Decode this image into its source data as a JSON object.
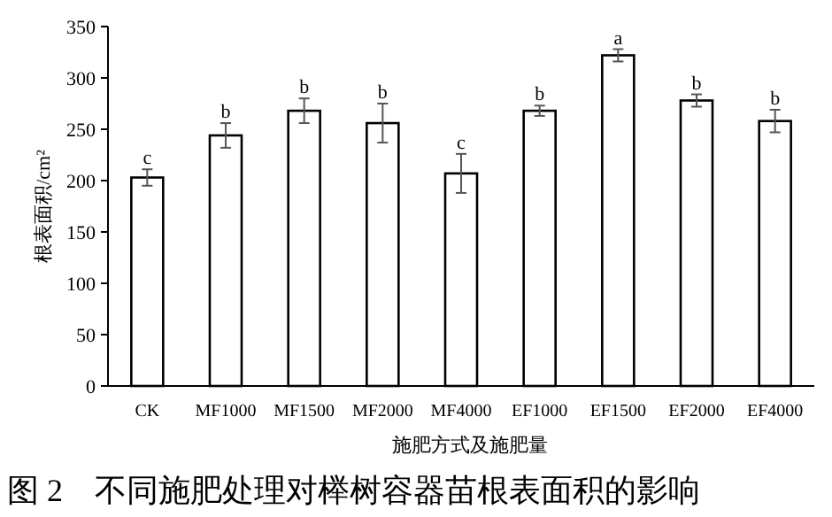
{
  "chart_data": {
    "type": "bar",
    "title": "图 2　不同施肥处理对榉树容器苗根表面积的影响",
    "xlabel": "施肥方式及施肥量",
    "ylabel": "根表面积/cm²",
    "categories": [
      "CK",
      "MF1000",
      "MF1500",
      "MF2000",
      "MF4000",
      "EF1000",
      "EF1500",
      "EF2000",
      "EF4000"
    ],
    "values": [
      203,
      244,
      268,
      256,
      207,
      268,
      322,
      278,
      258
    ],
    "errors": [
      8,
      12,
      12,
      19,
      19,
      5,
      6,
      6,
      11
    ],
    "color": "#ffffff",
    "ylim": [
      0,
      350
    ],
    "yticks": [
      0,
      50,
      100,
      150,
      200,
      250,
      300,
      350
    ],
    "annotations": [
      {
        "text": "c",
        "x": "CK",
        "y": 211
      },
      {
        "text": "b",
        "x": "MF1000",
        "y": 256
      },
      {
        "text": "b",
        "x": "MF1500",
        "y": 280
      },
      {
        "text": "b",
        "x": "MF2000",
        "y": 275
      },
      {
        "text": "c",
        "x": "MF4000",
        "y": 226
      },
      {
        "text": "b",
        "x": "EF1000",
        "y": 273
      },
      {
        "text": "a",
        "x": "EF1500",
        "y": 328
      },
      {
        "text": "b",
        "x": "EF2000",
        "y": 284
      },
      {
        "text": "b",
        "x": "EF4000",
        "y": 269
      }
    ]
  }
}
